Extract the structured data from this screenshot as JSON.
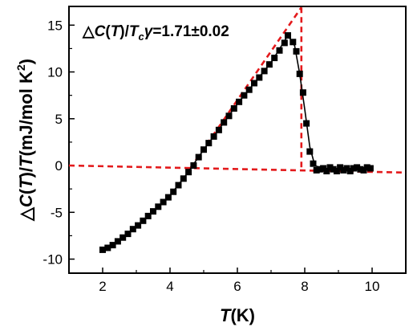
{
  "chart_data": {
    "type": "scatter",
    "title": "",
    "xlabel": {
      "italic": "T",
      "plain": "(K)"
    },
    "ylabel": {
      "prefix": "△",
      "c_italic": "C",
      "paren1": "(",
      "t1_italic": "T",
      "paren2": ")/",
      "t2_italic": "T",
      "units": "(mJ/mol K",
      "sup": "2",
      "close": ")"
    },
    "xlim": [
      1,
      11
    ],
    "ylim": [
      -11.5,
      17
    ],
    "x_ticks": [
      2,
      4,
      6,
      8,
      10
    ],
    "y_ticks": [
      -10,
      -5,
      0,
      5,
      10,
      15
    ],
    "grid": false,
    "annotation": {
      "prefix": "△",
      "c_italic": "C",
      "open": "(",
      "t_italic": "T",
      "close_slash": ")/",
      "tc_italic": "T",
      "tc_sub": "c",
      "gamma": "γ",
      "value": "=1.71±0.02"
    },
    "series": [
      {
        "marker": "square",
        "color": "#000000",
        "x": [
          2.0,
          2.15,
          2.3,
          2.45,
          2.6,
          2.75,
          2.9,
          3.05,
          3.2,
          3.35,
          3.5,
          3.65,
          3.8,
          3.95,
          4.1,
          4.25,
          4.4,
          4.55,
          4.7,
          4.85,
          5.0,
          5.15,
          5.3,
          5.45,
          5.6,
          5.75,
          5.9,
          6.05,
          6.2,
          6.35,
          6.5,
          6.65,
          6.8,
          6.95,
          7.1,
          7.25,
          7.4,
          7.5,
          7.65,
          7.75,
          7.85,
          7.95,
          8.05,
          8.15,
          8.25,
          8.35,
          8.45,
          8.55,
          8.65,
          8.75,
          8.85,
          8.95,
          9.05,
          9.15,
          9.25,
          9.35,
          9.45,
          9.55,
          9.65,
          9.75,
          9.85,
          9.95
        ],
        "y": [
          -9.0,
          -8.8,
          -8.5,
          -8.1,
          -7.7,
          -7.3,
          -6.8,
          -6.4,
          -5.9,
          -5.4,
          -4.9,
          -4.4,
          -3.9,
          -3.4,
          -2.8,
          -2.1,
          -1.4,
          -0.7,
          0.0,
          0.9,
          1.7,
          2.4,
          3.1,
          3.8,
          4.6,
          5.3,
          6.1,
          6.8,
          7.5,
          8.1,
          8.8,
          9.4,
          10.1,
          10.8,
          11.5,
          12.3,
          13.1,
          13.9,
          13.2,
          12.2,
          9.8,
          7.8,
          4.5,
          1.5,
          0.2,
          -0.5,
          -0.4,
          -0.3,
          -0.6,
          -0.2,
          -0.4,
          -0.6,
          -0.2,
          -0.5,
          -0.3,
          -0.6,
          -0.3,
          -0.2,
          -0.4,
          -0.5,
          -0.2,
          -0.3
        ]
      }
    ],
    "guides": [
      {
        "kind": "line",
        "style": "dashed",
        "color": "#e31a1c",
        "points": [
          [
            1.0,
            0.0
          ],
          [
            11.0,
            -0.75
          ]
        ]
      },
      {
        "kind": "line",
        "style": "dashed",
        "color": "#e31a1c",
        "points": [
          [
            4.6,
            -0.3
          ],
          [
            7.9,
            16.9
          ]
        ]
      },
      {
        "kind": "line",
        "style": "dashed",
        "color": "#e31a1c",
        "points": [
          [
            7.9,
            16.9
          ],
          [
            7.9,
            -0.5
          ]
        ]
      }
    ],
    "fit_curve": {
      "color": "#000000",
      "points": [
        [
          2.0,
          -9.0
        ],
        [
          2.5,
          -8.0
        ],
        [
          3.0,
          -6.6
        ],
        [
          3.5,
          -4.9
        ],
        [
          4.0,
          -3.2
        ],
        [
          4.5,
          -0.9
        ],
        [
          5.0,
          1.7
        ],
        [
          5.5,
          4.1
        ],
        [
          6.0,
          6.6
        ],
        [
          6.5,
          8.8
        ],
        [
          7.0,
          11.0
        ],
        [
          7.5,
          13.9
        ],
        [
          7.7,
          12.8
        ],
        [
          7.85,
          9.8
        ],
        [
          8.0,
          6.0
        ],
        [
          8.15,
          2.0
        ],
        [
          8.3,
          0.0
        ],
        [
          8.5,
          -0.3
        ],
        [
          9.0,
          -0.35
        ],
        [
          9.5,
          -0.35
        ],
        [
          10.0,
          -0.3
        ]
      ]
    }
  }
}
